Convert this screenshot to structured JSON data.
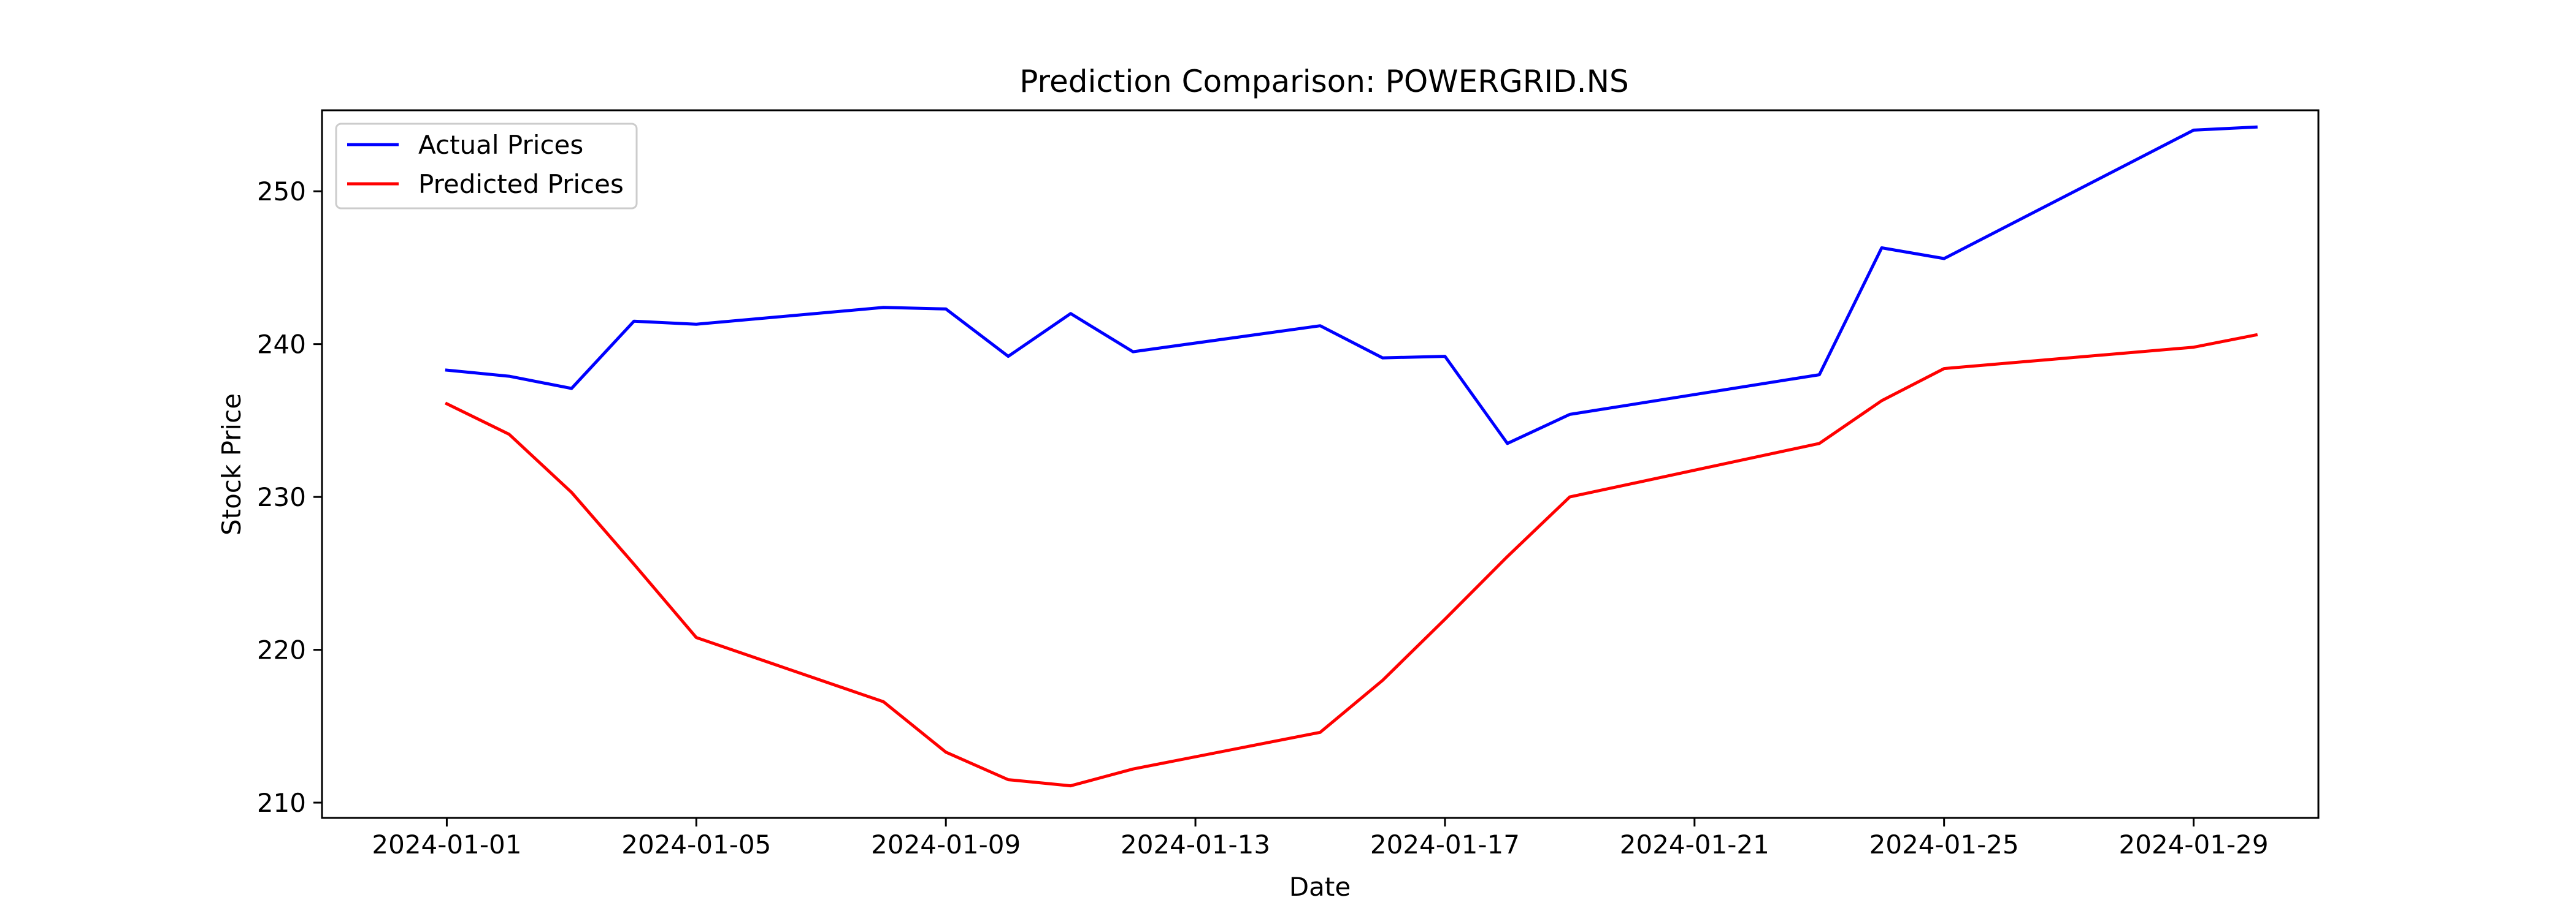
{
  "chart_data": {
    "type": "line",
    "title": "Prediction Comparison: POWERGRID.NS",
    "xlabel": "Date",
    "ylabel": "Stock Price",
    "xlim": [
      "2023-12-30",
      "2024-01-31"
    ],
    "ylim": [
      209,
      255.3
    ],
    "x_ticks": [
      "2024-01-01",
      "2024-01-05",
      "2024-01-09",
      "2024-01-13",
      "2024-01-17",
      "2024-01-21",
      "2024-01-25",
      "2024-01-29"
    ],
    "y_ticks": [
      210,
      220,
      230,
      240,
      250
    ],
    "grid": false,
    "legend_position": "top-left",
    "series": [
      {
        "name": "Actual Prices",
        "color": "#0000ff",
        "points": [
          [
            "2024-01-01",
            238.3
          ],
          [
            "2024-01-02",
            237.9
          ],
          [
            "2024-01-03",
            237.1
          ],
          [
            "2024-01-04",
            241.5
          ],
          [
            "2024-01-05",
            241.3
          ],
          [
            "2024-01-08",
            242.4
          ],
          [
            "2024-01-09",
            242.3
          ],
          [
            "2024-01-10",
            239.2
          ],
          [
            "2024-01-11",
            242.0
          ],
          [
            "2024-01-12",
            239.5
          ],
          [
            "2024-01-15",
            241.2
          ],
          [
            "2024-01-16",
            239.1
          ],
          [
            "2024-01-17",
            239.2
          ],
          [
            "2024-01-18",
            233.5
          ],
          [
            "2024-01-19",
            235.4
          ],
          [
            "2024-01-23",
            238.0
          ],
          [
            "2024-01-24",
            246.3
          ],
          [
            "2024-01-25",
            245.6
          ],
          [
            "2024-01-29",
            254.0
          ],
          [
            "2024-01-30",
            254.2
          ]
        ]
      },
      {
        "name": "Predicted Prices",
        "color": "#ff0000",
        "points": [
          [
            "2024-01-01",
            236.1
          ],
          [
            "2024-01-02",
            234.1
          ],
          [
            "2024-01-03",
            230.3
          ],
          [
            "2024-01-04",
            225.6
          ],
          [
            "2024-01-05",
            220.8
          ],
          [
            "2024-01-08",
            216.6
          ],
          [
            "2024-01-09",
            213.3
          ],
          [
            "2024-01-10",
            211.5
          ],
          [
            "2024-01-11",
            211.1
          ],
          [
            "2024-01-12",
            212.2
          ],
          [
            "2024-01-15",
            214.6
          ],
          [
            "2024-01-16",
            218.0
          ],
          [
            "2024-01-17",
            222.0
          ],
          [
            "2024-01-18",
            226.1
          ],
          [
            "2024-01-19",
            230.0
          ],
          [
            "2024-01-23",
            233.5
          ],
          [
            "2024-01-24",
            236.3
          ],
          [
            "2024-01-25",
            238.4
          ],
          [
            "2024-01-29",
            239.8
          ],
          [
            "2024-01-30",
            240.6
          ]
        ]
      }
    ]
  }
}
